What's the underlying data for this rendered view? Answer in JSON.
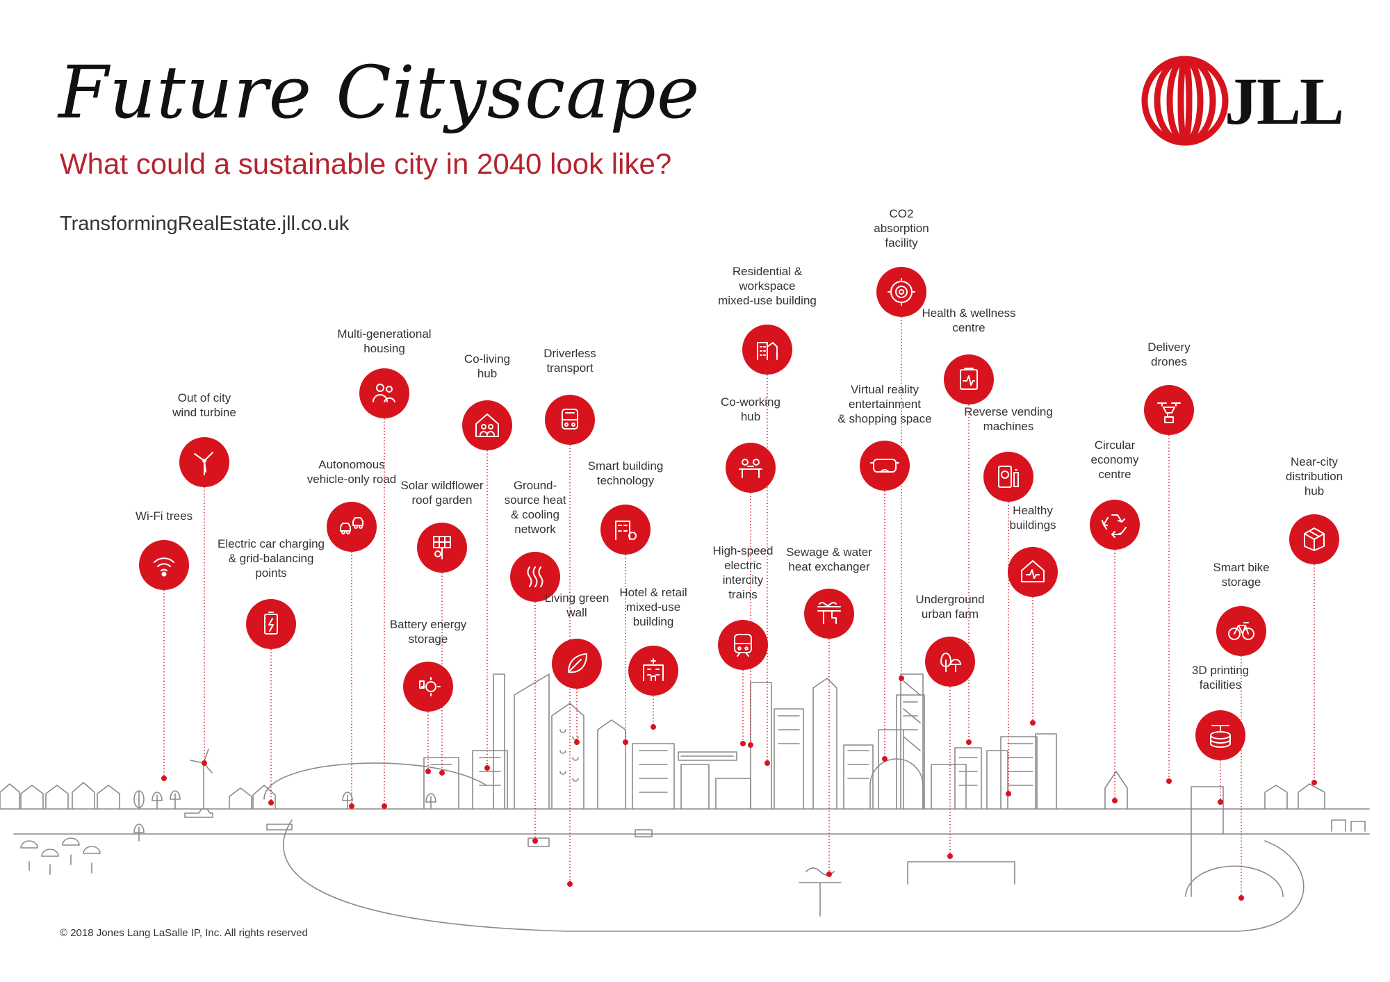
{
  "header": {
    "title": "Future Cityscape",
    "subtitle": "What could a sustainable city in 2040 look like?",
    "url": "TransformingRealEstate.jll.co.uk"
  },
  "logo": {
    "text": "JLL",
    "color": "#d7141e"
  },
  "footer": {
    "copyright": "© 2018 Jones Lang LaSalle IP, Inc. All rights reserved"
  },
  "colors": {
    "accent": "#d7141e",
    "line": "#8a8a8a",
    "text": "#333333"
  },
  "features": [
    {
      "label": "Wi-Fi trees",
      "icon": "wifi-icon"
    },
    {
      "label": "Out of city\nwind turbine",
      "icon": "wind-turbine-icon"
    },
    {
      "label": "Electric car charging\n& grid-balancing\npoints",
      "icon": "battery-charge-icon"
    },
    {
      "label": "Autonomous\nvehicle-only road",
      "icon": "autonomous-cars-icon"
    },
    {
      "label": "Multi-generational\nhousing",
      "icon": "family-icon"
    },
    {
      "label": "Solar wildflower\nroof garden",
      "icon": "solar-flower-icon"
    },
    {
      "label": "Battery energy\nstorage",
      "icon": "battery-sun-icon"
    },
    {
      "label": "Co-living\nhub",
      "icon": "co-living-icon"
    },
    {
      "label": "Ground-\nsource heat\n& cooling\nnetwork",
      "icon": "heat-waves-icon"
    },
    {
      "label": "Driverless\ntransport",
      "icon": "bus-icon"
    },
    {
      "label": "Living green\nwall",
      "icon": "leaf-icon"
    },
    {
      "label": "Smart building\ntechnology",
      "icon": "smart-building-icon"
    },
    {
      "label": "Hotel & retail\nmixed-use\nbuilding",
      "icon": "hotel-icon"
    },
    {
      "label": "Residential &\nworkspace\nmixed-use building",
      "icon": "mixed-use-icon"
    },
    {
      "label": "Co-working\nhub",
      "icon": "co-working-icon"
    },
    {
      "label": "High-speed\nelectric\nintercity\ntrains",
      "icon": "train-icon"
    },
    {
      "label": "Sewage & water\nheat exchanger",
      "icon": "water-exchanger-icon"
    },
    {
      "label": "CO2\nabsorption\nfacility",
      "icon": "co2-icon"
    },
    {
      "label": "Virtual reality\nentertainment\n& shopping space",
      "icon": "vr-headset-icon"
    },
    {
      "label": "Health & wellness\ncentre",
      "icon": "health-icon"
    },
    {
      "label": "Underground\nurban farm",
      "icon": "trees-icon"
    },
    {
      "label": "Reverse vending\nmachines",
      "icon": "vending-machine-icon"
    },
    {
      "label": "Healthy\nbuildings",
      "icon": "healthy-building-icon"
    },
    {
      "label": "Circular\neconomy\ncentre",
      "icon": "recycle-icon"
    },
    {
      "label": "Delivery\ndrones",
      "icon": "drone-icon"
    },
    {
      "label": "3D printing\nfacilities",
      "icon": "3d-printer-icon"
    },
    {
      "label": "Smart bike\nstorage",
      "icon": "bike-icon"
    },
    {
      "label": "Near-city\ndistribution\nhub",
      "icon": "parcel-icon"
    }
  ]
}
